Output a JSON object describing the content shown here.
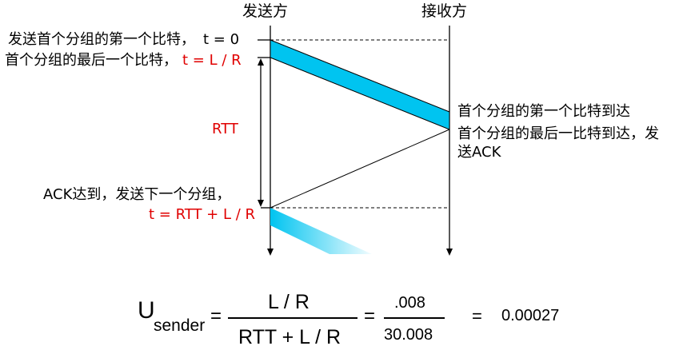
{
  "headers": {
    "sender": "发送方",
    "receiver": "接收方"
  },
  "sender_labels": {
    "first_bit_text": "发送首个分组的第一个比特，",
    "first_bit_time": "t = 0",
    "last_bit_text": "首个分组的最后一个比特，",
    "last_bit_time": "t = L / R",
    "rtt": "RTT",
    "ack_arrive_text": "ACK达到，发送下一个分组，",
    "ack_arrive_time": "t = RTT + L / R"
  },
  "receiver_labels": {
    "first_bit_arrive": "首个分组的第一个比特到达",
    "last_bit_arrive_line1": "首个分组的最后一比特到达，发",
    "last_bit_arrive_line2": "送ACK"
  },
  "formula": {
    "u": "U",
    "sub": "sender",
    "eq1": "=",
    "numerator": "L / R",
    "denominator": "RTT + L / R",
    "eq2": "=",
    "num_value": ".008",
    "den_value": "30.008",
    "eq3": "=",
    "result": "0.00027"
  },
  "colors": {
    "packet": "#00c4f0",
    "red_text": "#e00000"
  }
}
